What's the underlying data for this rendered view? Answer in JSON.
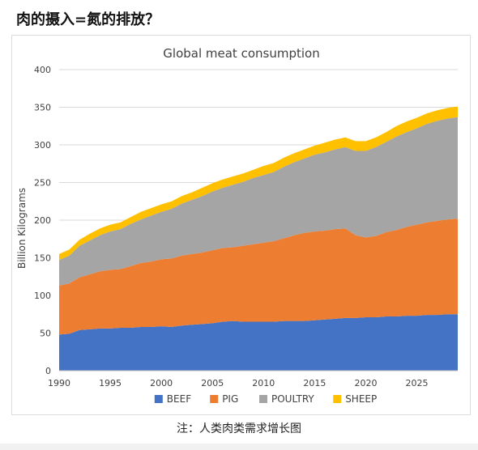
{
  "page": {
    "heading": "肉的摄入=氮的排放？",
    "note": "注：人类肉类需求增长图"
  },
  "colors": {
    "beef": "#4472c4",
    "pig": "#ed7d31",
    "poultry": "#a5a5a5",
    "sheep": "#ffc000",
    "grid": "#d9d9d9",
    "text": "#404040"
  },
  "chart_data": {
    "type": "area",
    "stacked": true,
    "title": "Global meat consumption",
    "xlabel": "",
    "ylabel": "Billion Kilograms",
    "xlim": [
      1990,
      2029
    ],
    "ylim": [
      0,
      400
    ],
    "xticks": [
      1990,
      1995,
      2000,
      2005,
      2010,
      2015,
      2020,
      2025
    ],
    "yticks": [
      0,
      50,
      100,
      150,
      200,
      250,
      300,
      350,
      400
    ],
    "grid": true,
    "legend": "bottom",
    "x": [
      1990,
      1991,
      1992,
      1993,
      1994,
      1995,
      1996,
      1997,
      1998,
      1999,
      2000,
      2001,
      2002,
      2003,
      2004,
      2005,
      2006,
      2007,
      2008,
      2009,
      2010,
      2011,
      2012,
      2013,
      2014,
      2015,
      2016,
      2017,
      2018,
      2019,
      2020,
      2021,
      2022,
      2023,
      2024,
      2025,
      2026,
      2027,
      2028,
      2029
    ],
    "series": [
      {
        "name": "BEEF",
        "color_key": "beef",
        "values": [
          48,
          49,
          54,
          55,
          56,
          56,
          57,
          57,
          58,
          58,
          59,
          58,
          60,
          61,
          62,
          63,
          65,
          66,
          65,
          65,
          65,
          65,
          66,
          66,
          66,
          67,
          68,
          69,
          70,
          70,
          71,
          71,
          72,
          72,
          73,
          73,
          74,
          74,
          75,
          75
        ]
      },
      {
        "name": "PIG",
        "color_key": "pig",
        "values": [
          65,
          67,
          70,
          73,
          76,
          78,
          78,
          82,
          85,
          87,
          89,
          91,
          93,
          94,
          95,
          97,
          98,
          98,
          101,
          103,
          105,
          107,
          110,
          114,
          117,
          118,
          118,
          119,
          119,
          110,
          106,
          108,
          112,
          115,
          118,
          121,
          123,
          125,
          126,
          127
        ]
      },
      {
        "name": "POULTRY",
        "color_key": "poultry",
        "values": [
          34,
          37,
          42,
          45,
          48,
          51,
          53,
          56,
          58,
          61,
          63,
          66,
          69,
          72,
          75,
          78,
          80,
          83,
          85,
          88,
          90,
          92,
          95,
          97,
          99,
          102,
          104,
          106,
          108,
          112,
          115,
          118,
          120,
          124,
          126,
          128,
          131,
          133,
          134,
          135
        ]
      },
      {
        "name": "SHEEP",
        "color_key": "sheep",
        "values": [
          8,
          8,
          8,
          9,
          9,
          9,
          9,
          9,
          10,
          10,
          10,
          10,
          10,
          10,
          11,
          11,
          11,
          11,
          11,
          11,
          12,
          12,
          12,
          12,
          12,
          12,
          13,
          13,
          13,
          13,
          13,
          13,
          13,
          14,
          14,
          14,
          14,
          14,
          14,
          14
        ]
      }
    ]
  }
}
